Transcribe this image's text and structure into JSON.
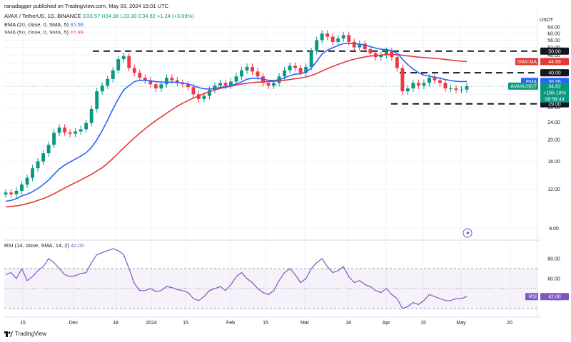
{
  "header": {
    "author_line": "ranadagger published on TradingView.com, May 03, 2024 15:01 UTC",
    "symbol": "AVAX / TetherUS, 1D, BINANCE",
    "open": "O33.57",
    "high": "H34.98",
    "low": "L33.30",
    "close": "C34.82",
    "change": "+1.24 (+3.69%)",
    "ema_label": "EMA (20, close, 0, SMA, 5)",
    "ema_value": "36.56",
    "sma_label": "SMA (50, close, 0, SMA, 5)",
    "sma_value": "44.89",
    "rsi_label": "RSI (14, close, SMA, 14, 2)",
    "rsi_value": "42.00",
    "currency": "USDT"
  },
  "tags": {
    "level_50": "50.00",
    "level_40": "40.00",
    "level_29": "29.00",
    "sma_tag": "SMA:MA",
    "sma_val": "44.89",
    "ema_tag": "EMA",
    "ema_val": "36.56",
    "price_tag": "AVAXUSDT",
    "price_val": "34.82",
    "price_pct": "+185.18%",
    "countdown": "08:58:44",
    "rsi_tag": "RSI",
    "rsi_val": "42.00"
  },
  "colors": {
    "up": "#089981",
    "down": "#f23645",
    "ema": "#2962ff",
    "sma": "#e53935",
    "rsi": "#7e57c2",
    "levels": "#131722"
  },
  "footer": {
    "brand": "TradingView"
  },
  "chart_data": [
    {
      "type": "line",
      "scale": "log",
      "y_ticks": [
        8,
        12,
        16,
        20,
        24,
        28,
        32,
        36,
        40,
        44,
        48,
        52,
        56,
        60,
        64
      ],
      "x_ticks": [
        "15",
        "Dec",
        "18",
        "2024",
        "15",
        "Feb",
        "15",
        "Mar",
        "18",
        "Apr",
        "15",
        "May",
        "20"
      ],
      "horizontal_levels": [
        50,
        40,
        29
      ],
      "series": [
        {
          "name": "AVAXUSDT",
          "values": [
            11.6,
            11.4,
            11.8,
            12.6,
            13.5,
            14.9,
            16.0,
            17.4,
            19.0,
            21.5,
            22.7,
            21.6,
            21.3,
            21.8,
            22.3,
            23.8,
            27.5,
            33.0,
            35.0,
            37.5,
            41.0,
            46.0,
            47.5,
            42.0,
            40.0,
            38.0,
            37.0,
            35.5,
            34.0,
            35.5,
            38.0,
            37.0,
            36.0,
            35.5,
            34.5,
            32.0,
            30.5,
            31.5,
            33.5,
            35.0,
            36.0,
            35.0,
            36.5,
            38.5,
            41.0,
            42.5,
            40.5,
            38.5,
            36.0,
            35.0,
            36.0,
            38.5,
            41.0,
            43.0,
            42.0,
            40.0,
            42.5,
            50.0,
            56.0,
            60.0,
            58.0,
            55.0,
            57.0,
            59.0,
            55.0,
            52.0,
            54.0,
            51.0,
            49.0,
            47.0,
            48.0,
            50.0,
            47.0,
            42.0,
            33.0,
            34.0,
            36.0,
            35.0,
            36.0,
            38.0,
            37.0,
            36.0,
            34.0,
            34.0,
            33.5,
            33.6,
            34.82
          ]
        },
        {
          "name": "EMA",
          "values": [
            10.6,
            10.7,
            10.9,
            11.2,
            11.4,
            11.7,
            12.1,
            12.6,
            13.2,
            14.0,
            14.8,
            15.4,
            15.9,
            16.4,
            16.9,
            17.5,
            18.5,
            20.0,
            22.0,
            24.5,
            27.5,
            30.5,
            33.5,
            35.0,
            36.5,
            37.0,
            37.0,
            36.8,
            36.5,
            36.3,
            36.3,
            36.3,
            36.2,
            36.0,
            35.6,
            35.0,
            34.3,
            33.9,
            33.8,
            34.0,
            34.4,
            34.6,
            35.0,
            35.6,
            36.4,
            37.4,
            37.8,
            37.8,
            37.4,
            37.0,
            36.9,
            37.2,
            37.9,
            38.8,
            39.4,
            39.6,
            40.2,
            42.0,
            45.0,
            48.5,
            50.5,
            51.8,
            53.0,
            54.0,
            54.3,
            54.0,
            53.8,
            53.2,
            52.4,
            51.6,
            51.0,
            50.8,
            50.2,
            49.0,
            46.0,
            43.5,
            41.5,
            40.0,
            39.0,
            38.6,
            38.2,
            37.8,
            37.3,
            36.9,
            36.6,
            36.5,
            36.56
          ]
        },
        {
          "name": "SMA:MA",
          "values": [
            10.0,
            10.05,
            10.1,
            10.2,
            10.35,
            10.5,
            10.7,
            10.9,
            11.15,
            11.45,
            11.8,
            12.15,
            12.5,
            12.85,
            13.2,
            13.6,
            14.0,
            14.5,
            15.0,
            15.7,
            16.5,
            17.4,
            18.4,
            19.4,
            20.4,
            21.4,
            22.4,
            23.4,
            24.4,
            25.3,
            26.3,
            27.3,
            28.3,
            29.2,
            30.0,
            30.8,
            31.5,
            32.2,
            32.9,
            33.5,
            34.0,
            34.4,
            34.8,
            35.2,
            35.6,
            35.9,
            36.1,
            36.3,
            36.4,
            36.5,
            36.6,
            36.8,
            37.0,
            37.3,
            37.6,
            37.9,
            38.3,
            38.9,
            39.7,
            40.7,
            41.7,
            42.7,
            43.6,
            44.5,
            45.3,
            46.0,
            46.6,
            47.1,
            47.5,
            47.8,
            48.0,
            48.2,
            48.3,
            48.2,
            47.9,
            47.6,
            47.3,
            47.0,
            46.8,
            46.6,
            46.4,
            46.2,
            45.9,
            45.6,
            45.3,
            45.1,
            44.89
          ]
        }
      ]
    },
    {
      "type": "line",
      "y_ticks": [
        40,
        60,
        80
      ],
      "bands": [
        30,
        50,
        70
      ],
      "series": [
        {
          "name": "RSI",
          "values": [
            64,
            66,
            60,
            70,
            58,
            62,
            68,
            72,
            80,
            76,
            70,
            64,
            62,
            63,
            65,
            66,
            76,
            84,
            86,
            88,
            90,
            88,
            84,
            70,
            55,
            48,
            48,
            50,
            47,
            48,
            52,
            51,
            49,
            48,
            46,
            40,
            38,
            42,
            48,
            50,
            52,
            48,
            54,
            62,
            66,
            60,
            56,
            50,
            46,
            44,
            48,
            58,
            66,
            70,
            64,
            56,
            60,
            70,
            76,
            80,
            72,
            66,
            68,
            72,
            62,
            56,
            58,
            54,
            52,
            48,
            46,
            50,
            44,
            40,
            30,
            32,
            36,
            34,
            38,
            44,
            42,
            40,
            38,
            38,
            40,
            40,
            42
          ]
        }
      ]
    }
  ]
}
